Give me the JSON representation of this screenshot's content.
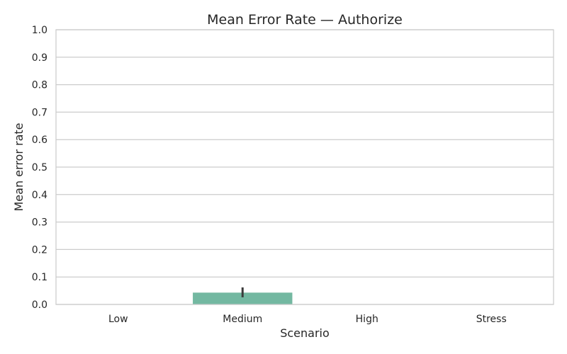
{
  "chart_data": {
    "type": "bar",
    "title": "Mean Error Rate — Authorize",
    "xlabel": "Scenario",
    "ylabel": "Mean error rate",
    "categories": [
      "Low",
      "Medium",
      "High",
      "Stress"
    ],
    "values": [
      0.0,
      0.043,
      0.0,
      0.0
    ],
    "error_bars": [
      null,
      [
        0.026,
        0.062
      ],
      null,
      null
    ],
    "ylim": [
      0,
      1.0
    ],
    "yticks": [
      "0.0",
      "0.1",
      "0.2",
      "0.3",
      "0.4",
      "0.5",
      "0.6",
      "0.7",
      "0.8",
      "0.9",
      "1.0"
    ],
    "grid": true,
    "bar_color": "#73b8a1",
    "error_color": "#3b3b3b",
    "grid_color": "#cccccc"
  }
}
